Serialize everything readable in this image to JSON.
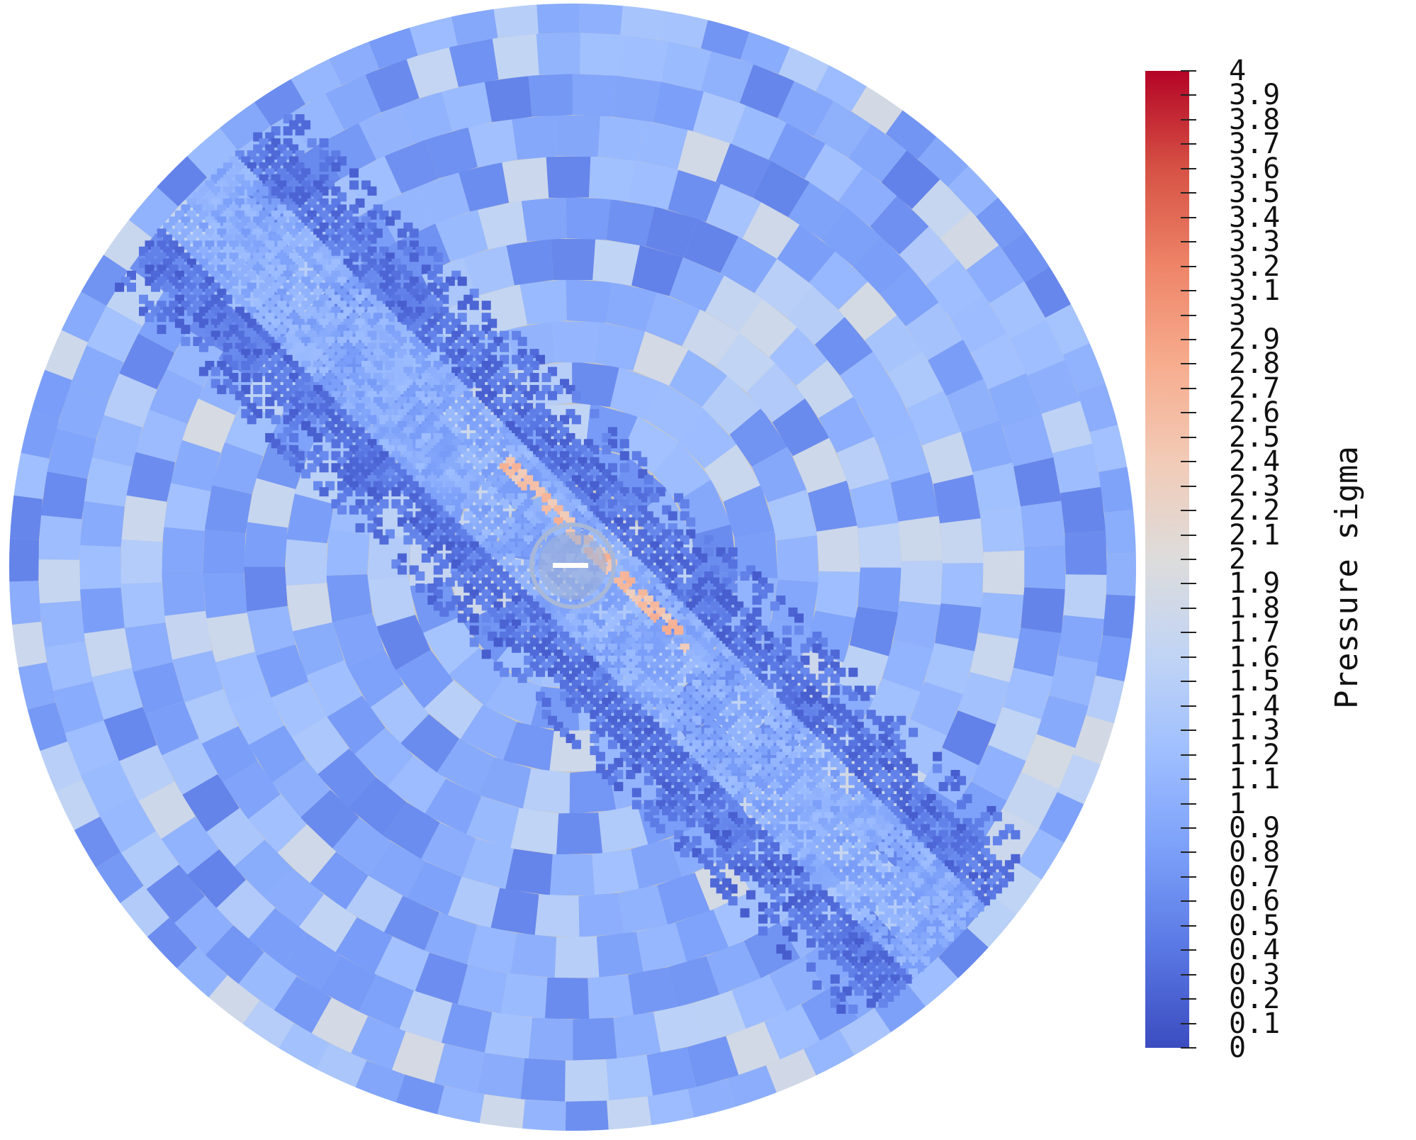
{
  "colorbar": {
    "title": "Pressure sigma",
    "tick_labels": [
      "0",
      "0.1",
      "0.2",
      "0.3",
      "0.4",
      "0.5",
      "0.6",
      "0.7",
      "0.8",
      "0.9",
      "1",
      "1.1",
      "1.2",
      "1.3",
      "1.4",
      "1.5",
      "1.6",
      "1.7",
      "1.8",
      "1.9",
      "2",
      "2.1",
      "2.2",
      "2.3",
      "2.4",
      "2.5",
      "2.6",
      "2.7",
      "2.8",
      "2.9",
      "3",
      "3.1",
      "3.2",
      "3.3",
      "3.4",
      "3.5",
      "3.6",
      "3.7",
      "3.8",
      "3.9",
      "4"
    ],
    "range": [
      0,
      4
    ],
    "colormap": [
      "#3b4cc0",
      "#5977e3",
      "#7b9ff9",
      "#9ebeff",
      "#c0d4f5",
      "#dddcdc",
      "#f2cbb7",
      "#f7ac8e",
      "#ee8468",
      "#d65244",
      "#b40426"
    ]
  },
  "field": {
    "background_value": 1.05,
    "band_angle_deg": 45
  }
}
